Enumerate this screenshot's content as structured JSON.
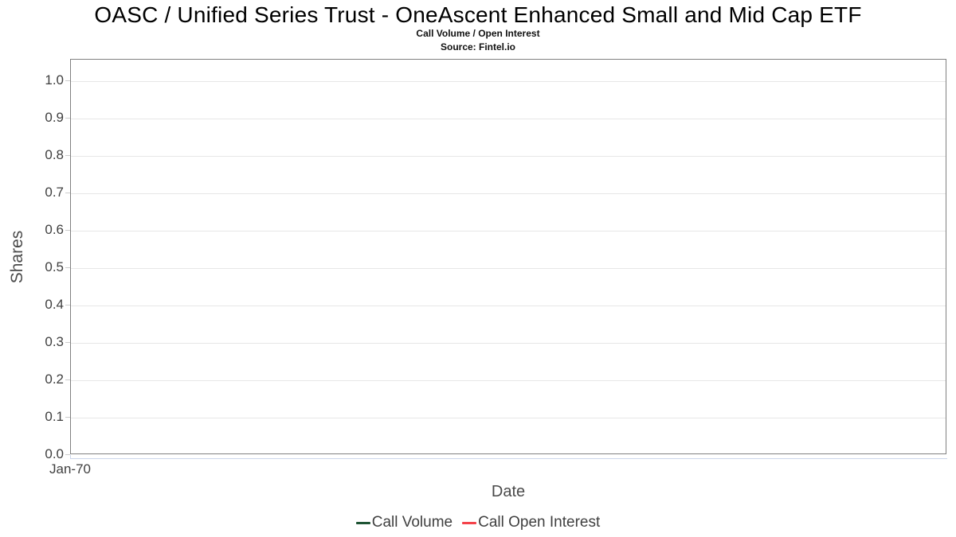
{
  "chart_data": {
    "type": "line",
    "title": "OASC / Unified Series Trust - OneAscent Enhanced Small and Mid Cap ETF",
    "subtitle": "Call Volume / Open Interest",
    "source": "Source: Fintel.io",
    "xlabel": "Date",
    "ylabel": "Shares",
    "x_tick_labels": [
      "Jan-70"
    ],
    "y_tick_labels": [
      "0.0",
      "0.1",
      "0.2",
      "0.3",
      "0.4",
      "0.5",
      "0.6",
      "0.7",
      "0.8",
      "0.9",
      "1.0"
    ],
    "ylim": [
      0.0,
      1.057
    ],
    "grid": "horizontal gridlines on, vertical off",
    "legend_position": "bottom-center",
    "series": [
      {
        "name": "Call Volume",
        "color": "#1e5434",
        "x": [],
        "values": []
      },
      {
        "name": "Call Open Interest",
        "color": "#f4434a",
        "x": [],
        "values": []
      }
    ],
    "colors": {
      "plot_border": "#808080",
      "gridline": "#e7e7e7",
      "xaxis_line": "#ccd6eb",
      "tick_mark": "#cccccc",
      "title_text": "#000000",
      "axis_label_text": "#3f3f3f",
      "axis_title_text": "#4a4a4a",
      "legend_text": "#404040"
    }
  }
}
